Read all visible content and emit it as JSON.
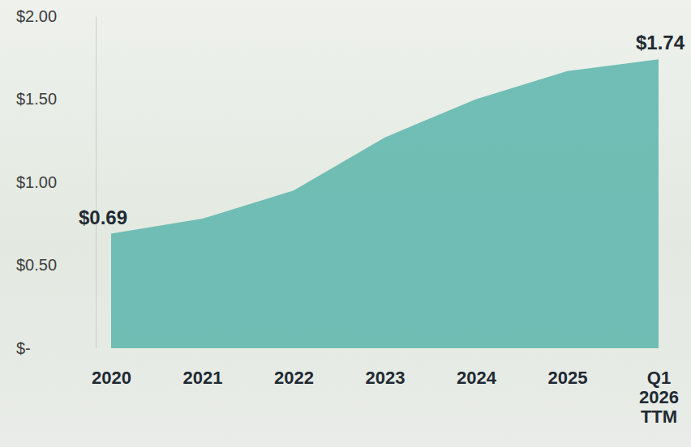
{
  "chart_data": {
    "type": "area",
    "categories": [
      "2020",
      "2021",
      "2022",
      "2023",
      "2024",
      "2025",
      "Q1 2026 TTM"
    ],
    "values": [
      0.69,
      0.78,
      0.95,
      1.27,
      1.5,
      1.67,
      1.74
    ],
    "value_labels": [
      "$0.69",
      null,
      null,
      null,
      null,
      null,
      "$1.74"
    ],
    "data_labels": true,
    "color": "#5bb5ac",
    "ylim": [
      0,
      2
    ],
    "yticks": [
      {
        "value": 0,
        "label": "$-"
      },
      {
        "value": 0.5,
        "label": "$0.50"
      },
      {
        "value": 1,
        "label": "$1.00"
      },
      {
        "value": 1.5,
        "label": "$1.50"
      },
      {
        "value": 2,
        "label": "$2.00"
      }
    ],
    "grid": false
  }
}
